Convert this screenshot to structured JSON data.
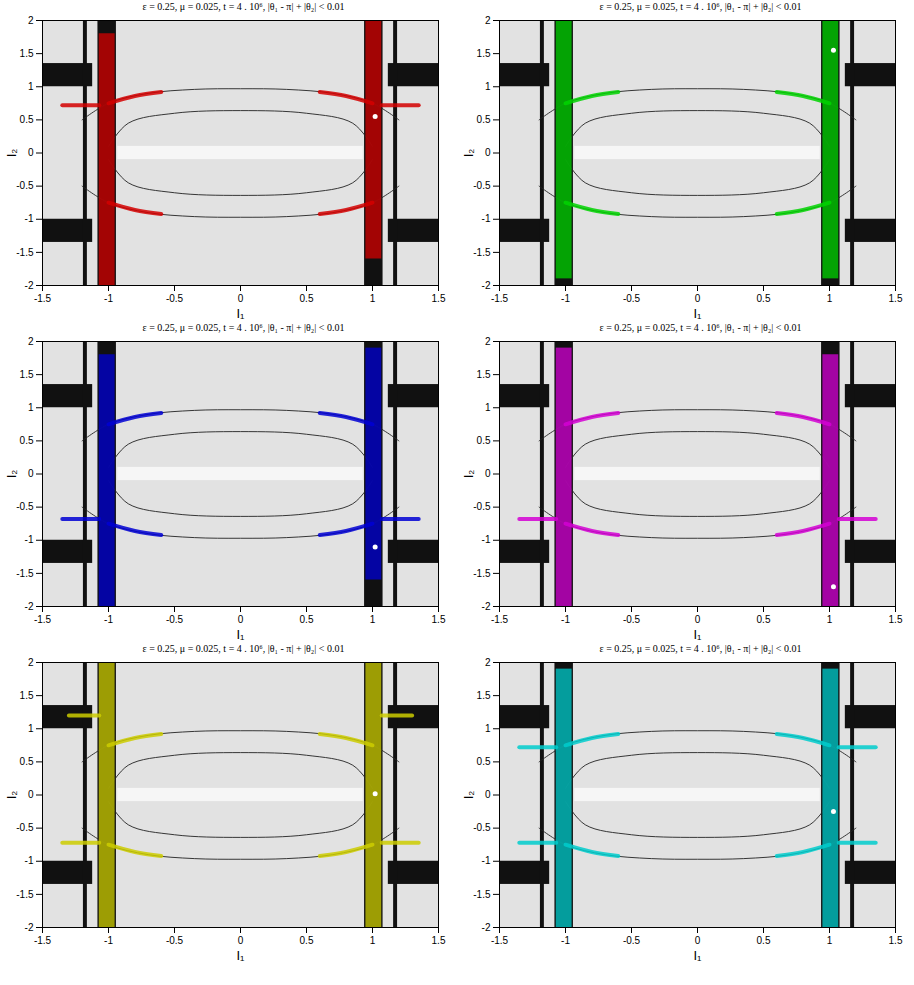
{
  "background": {
    "fill": "#e2e2e2",
    "light_bands": [
      {
        "x1": -0.93,
        "x2": 0.93,
        "y1": -0.1,
        "y2": 0.1
      }
    ],
    "bands": [
      {
        "x1": -1.08,
        "x2": -0.94,
        "y1": -2,
        "y2": 2
      },
      {
        "x1": 0.94,
        "x2": 1.08,
        "y1": -2,
        "y2": 2
      },
      {
        "x1": -1.5,
        "x2": -1.12,
        "y1": 1.0,
        "y2": 1.35
      },
      {
        "x1": -1.5,
        "x2": -1.12,
        "y1": -1.35,
        "y2": -1.0
      },
      {
        "x1": 1.12,
        "x2": 1.5,
        "y1": 1.0,
        "y2": 1.35
      },
      {
        "x1": 1.12,
        "x2": 1.5,
        "y1": -1.35,
        "y2": -1.0
      },
      {
        "x1": -1.19,
        "x2": -1.16,
        "y1": -2,
        "y2": 2
      },
      {
        "x1": 1.16,
        "x2": 1.19,
        "y1": -2,
        "y2": 2
      }
    ],
    "curves": [
      [
        [
          -1.2,
          0.5
        ],
        [
          -1,
          0.75
        ],
        [
          -0.7,
          0.9
        ],
        [
          -0.35,
          0.96
        ],
        [
          0,
          0.97
        ],
        [
          0.35,
          0.96
        ],
        [
          0.7,
          0.9
        ],
        [
          1,
          0.75
        ],
        [
          1.2,
          0.5
        ]
      ],
      [
        [
          -1.2,
          -0.5
        ],
        [
          -1,
          -0.75
        ],
        [
          -0.7,
          -0.9
        ],
        [
          -0.35,
          -0.96
        ],
        [
          0,
          -0.97
        ],
        [
          0.35,
          -0.96
        ],
        [
          0.7,
          -0.9
        ],
        [
          1,
          -0.75
        ],
        [
          1.2,
          -0.5
        ]
      ],
      [
        [
          -1,
          0.1
        ],
        [
          -0.85,
          0.45
        ],
        [
          -0.5,
          0.6
        ],
        [
          0,
          0.64
        ],
        [
          0.5,
          0.6
        ],
        [
          0.85,
          0.45
        ],
        [
          1,
          0.1
        ]
      ],
      [
        [
          -1,
          -0.1
        ],
        [
          -0.85,
          -0.45
        ],
        [
          -0.5,
          -0.6
        ],
        [
          0,
          -0.64
        ],
        [
          0.5,
          -0.6
        ],
        [
          0.85,
          -0.45
        ],
        [
          1,
          -0.1
        ]
      ]
    ]
  },
  "chart_data": [
    {
      "type": "scatter",
      "title": "ε = 0.25, μ = 0.025,  t = 4 . 10⁶,  |θ₁ - π| + |θ₂| < 0.01",
      "x_label": "I₁",
      "y_label": "I₂",
      "xlim": [
        -1.5,
        1.5
      ],
      "ylim": [
        -2,
        2
      ],
      "xticks": [
        -1.5,
        -1,
        -0.5,
        0,
        0.5,
        1,
        1.5
      ],
      "yticks": [
        -2,
        -1.5,
        -1,
        -0.5,
        0,
        0.5,
        1,
        1.5,
        2
      ],
      "color": "#d40000",
      "start": {
        "x": 1.02,
        "y": 0.55
      },
      "regions": [
        {
          "x1": -1.07,
          "x2": -0.95,
          "y1": -2,
          "y2": 1.8
        },
        {
          "x1": 0.95,
          "x2": 1.07,
          "y1": -1.6,
          "y2": 2
        }
      ],
      "arcs": [
        [
          [
            -1,
            0.75
          ],
          [
            -0.8,
            0.86
          ],
          [
            -0.6,
            0.92
          ]
        ],
        [
          [
            1,
            0.75
          ],
          [
            0.8,
            0.86
          ],
          [
            0.6,
            0.92
          ]
        ],
        [
          [
            -1,
            -0.75
          ],
          [
            -0.8,
            -0.86
          ],
          [
            -0.6,
            -0.92
          ]
        ],
        [
          [
            1,
            -0.75
          ],
          [
            0.8,
            -0.86
          ],
          [
            0.6,
            -0.92
          ]
        ],
        [
          [
            1.07,
            0.72
          ],
          [
            1.35,
            0.72
          ]
        ],
        [
          [
            -1.07,
            0.72
          ],
          [
            -1.35,
            0.72
          ]
        ]
      ]
    },
    {
      "type": "scatter",
      "title": "ε = 0.25, μ = 0.025,  t = 4 . 10⁶,  |θ₁ - π| + |θ₂| < 0.01",
      "x_label": "I₁",
      "y_label": "I₂",
      "xlim": [
        -1.5,
        1.5
      ],
      "ylim": [
        -2,
        2
      ],
      "xticks": [
        -1.5,
        -1,
        -0.5,
        0,
        0.5,
        1,
        1.5
      ],
      "yticks": [
        -2,
        -1.5,
        -1,
        -0.5,
        0,
        0.5,
        1,
        1.5,
        2
      ],
      "color": "#00d400",
      "start": {
        "x": 1.03,
        "y": 1.55
      },
      "regions": [
        {
          "x1": -1.07,
          "x2": -0.95,
          "y1": -1.9,
          "y2": 2
        },
        {
          "x1": 0.95,
          "x2": 1.07,
          "y1": -1.9,
          "y2": 2
        }
      ],
      "arcs": [
        [
          [
            -1,
            0.75
          ],
          [
            -0.8,
            0.86
          ],
          [
            -0.6,
            0.92
          ]
        ],
        [
          [
            1,
            0.75
          ],
          [
            0.8,
            0.86
          ],
          [
            0.6,
            0.92
          ]
        ],
        [
          [
            -1,
            -0.75
          ],
          [
            -0.8,
            -0.86
          ],
          [
            -0.6,
            -0.92
          ]
        ],
        [
          [
            1,
            -0.75
          ],
          [
            0.8,
            -0.86
          ],
          [
            0.6,
            -0.92
          ]
        ]
      ]
    },
    {
      "type": "scatter",
      "title": "ε = 0.25, μ = 0.025,  t = 4 . 10⁶,  |θ₁ - π| + |θ₂| < 0.01",
      "x_label": "I₁",
      "y_label": "I₂",
      "xlim": [
        -1.5,
        1.5
      ],
      "ylim": [
        -2,
        2
      ],
      "xticks": [
        -1.5,
        -1,
        -0.5,
        0,
        0.5,
        1,
        1.5
      ],
      "yticks": [
        -2,
        -1.5,
        -1,
        -0.5,
        0,
        0.5,
        1,
        1.5,
        2
      ],
      "color": "#0000d4",
      "start": {
        "x": 1.02,
        "y": -1.1
      },
      "regions": [
        {
          "x1": -1.07,
          "x2": -0.95,
          "y1": -2,
          "y2": 1.8
        },
        {
          "x1": 0.95,
          "x2": 1.07,
          "y1": -1.6,
          "y2": 1.9
        }
      ],
      "arcs": [
        [
          [
            -1,
            0.75
          ],
          [
            -0.8,
            0.86
          ],
          [
            -0.6,
            0.92
          ]
        ],
        [
          [
            1,
            0.75
          ],
          [
            0.8,
            0.86
          ],
          [
            0.6,
            0.92
          ]
        ],
        [
          [
            -1,
            -0.75
          ],
          [
            -0.8,
            -0.86
          ],
          [
            -0.6,
            -0.92
          ]
        ],
        [
          [
            1,
            -0.75
          ],
          [
            0.8,
            -0.86
          ],
          [
            0.6,
            -0.92
          ]
        ],
        [
          [
            -1.07,
            -0.68
          ],
          [
            -1.35,
            -0.68
          ]
        ],
        [
          [
            1.07,
            -0.68
          ],
          [
            1.35,
            -0.68
          ]
        ]
      ]
    },
    {
      "type": "scatter",
      "title": "ε = 0.25, μ = 0.025,  t = 4 . 10⁶,  |θ₁ - π| + |θ₂| < 0.01",
      "x_label": "I₁",
      "y_label": "I₂",
      "xlim": [
        -1.5,
        1.5
      ],
      "ylim": [
        -2,
        2
      ],
      "xticks": [
        -1.5,
        -1,
        -0.5,
        0,
        0.5,
        1,
        1.5
      ],
      "yticks": [
        -2,
        -1.5,
        -1,
        -0.5,
        0,
        0.5,
        1,
        1.5,
        2
      ],
      "color": "#d400d4",
      "start": {
        "x": 1.03,
        "y": -1.7
      },
      "regions": [
        {
          "x1": -1.07,
          "x2": -0.95,
          "y1": -2,
          "y2": 1.9
        },
        {
          "x1": 0.95,
          "x2": 1.07,
          "y1": -2,
          "y2": 1.8
        }
      ],
      "arcs": [
        [
          [
            -1,
            0.75
          ],
          [
            -0.8,
            0.86
          ],
          [
            -0.6,
            0.92
          ]
        ],
        [
          [
            1,
            0.75
          ],
          [
            0.8,
            0.86
          ],
          [
            0.6,
            0.92
          ]
        ],
        [
          [
            -1,
            -0.75
          ],
          [
            -0.8,
            -0.86
          ],
          [
            -0.6,
            -0.92
          ]
        ],
        [
          [
            1,
            -0.75
          ],
          [
            0.8,
            -0.86
          ],
          [
            0.6,
            -0.92
          ]
        ],
        [
          [
            -1.07,
            -0.68
          ],
          [
            -1.35,
            -0.68
          ]
        ],
        [
          [
            1.07,
            -0.68
          ],
          [
            1.35,
            -0.68
          ]
        ]
      ]
    },
    {
      "type": "scatter",
      "title": "ε = 0.25, μ = 0.025,  t = 4 . 10⁶,  |θ₁ - π| + |θ₂| < 0.01",
      "x_label": "I₁",
      "y_label": "I₂",
      "xlim": [
        -1.5,
        1.5
      ],
      "ylim": [
        -2,
        2
      ],
      "xticks": [
        -1.5,
        -1,
        -0.5,
        0,
        0.5,
        1,
        1.5
      ],
      "yticks": [
        -2,
        -1.5,
        -1,
        -0.5,
        0,
        0.5,
        1,
        1.5,
        2
      ],
      "color": "#cccc00",
      "start": {
        "x": 1.02,
        "y": 0.02
      },
      "regions": [
        {
          "x1": -1.07,
          "x2": -0.95,
          "y1": -2,
          "y2": 2
        },
        {
          "x1": 0.95,
          "x2": 1.07,
          "y1": -2,
          "y2": 2
        }
      ],
      "arcs": [
        [
          [
            -1,
            0.75
          ],
          [
            -0.8,
            0.86
          ],
          [
            -0.6,
            0.92
          ]
        ],
        [
          [
            1,
            0.75
          ],
          [
            0.8,
            0.86
          ],
          [
            0.6,
            0.92
          ]
        ],
        [
          [
            -1,
            -0.75
          ],
          [
            -0.8,
            -0.86
          ],
          [
            -0.6,
            -0.92
          ]
        ],
        [
          [
            1,
            -0.75
          ],
          [
            0.8,
            -0.86
          ],
          [
            0.6,
            -0.92
          ]
        ],
        [
          [
            -1.07,
            1.2
          ],
          [
            -1.3,
            1.2
          ]
        ],
        [
          [
            1.07,
            1.2
          ],
          [
            1.3,
            1.2
          ]
        ],
        [
          [
            -1.07,
            -0.72
          ],
          [
            -1.35,
            -0.72
          ]
        ],
        [
          [
            1.07,
            -0.72
          ],
          [
            1.35,
            -0.72
          ]
        ]
      ]
    },
    {
      "type": "scatter",
      "title": "ε = 0.25, μ = 0.025,  t = 4 . 10⁶,  |θ₁ - π| + |θ₂| < 0.01",
      "x_label": "I₁",
      "y_label": "I₂",
      "xlim": [
        -1.5,
        1.5
      ],
      "ylim": [
        -2,
        2
      ],
      "xticks": [
        -1.5,
        -1,
        -0.5,
        0,
        0.5,
        1,
        1.5
      ],
      "yticks": [
        -2,
        -1.5,
        -1,
        -0.5,
        0,
        0.5,
        1,
        1.5,
        2
      ],
      "color": "#00cccc",
      "start": {
        "x": 1.03,
        "y": -0.25
      },
      "regions": [
        {
          "x1": -1.07,
          "x2": -0.95,
          "y1": -2,
          "y2": 1.9
        },
        {
          "x1": 0.95,
          "x2": 1.07,
          "y1": -2,
          "y2": 1.9
        }
      ],
      "arcs": [
        [
          [
            -1,
            0.75
          ],
          [
            -0.8,
            0.86
          ],
          [
            -0.6,
            0.92
          ]
        ],
        [
          [
            1,
            0.75
          ],
          [
            0.8,
            0.86
          ],
          [
            0.6,
            0.92
          ]
        ],
        [
          [
            -1,
            -0.75
          ],
          [
            -0.8,
            -0.86
          ],
          [
            -0.6,
            -0.92
          ]
        ],
        [
          [
            1,
            -0.75
          ],
          [
            0.8,
            -0.86
          ],
          [
            0.6,
            -0.92
          ]
        ],
        [
          [
            -1.07,
            0.72
          ],
          [
            -1.35,
            0.72
          ]
        ],
        [
          [
            1.07,
            0.72
          ],
          [
            1.35,
            0.72
          ]
        ],
        [
          [
            -1.07,
            -0.72
          ],
          [
            -1.35,
            -0.72
          ]
        ],
        [
          [
            1.07,
            -0.72
          ],
          [
            1.35,
            -0.72
          ]
        ]
      ]
    }
  ]
}
